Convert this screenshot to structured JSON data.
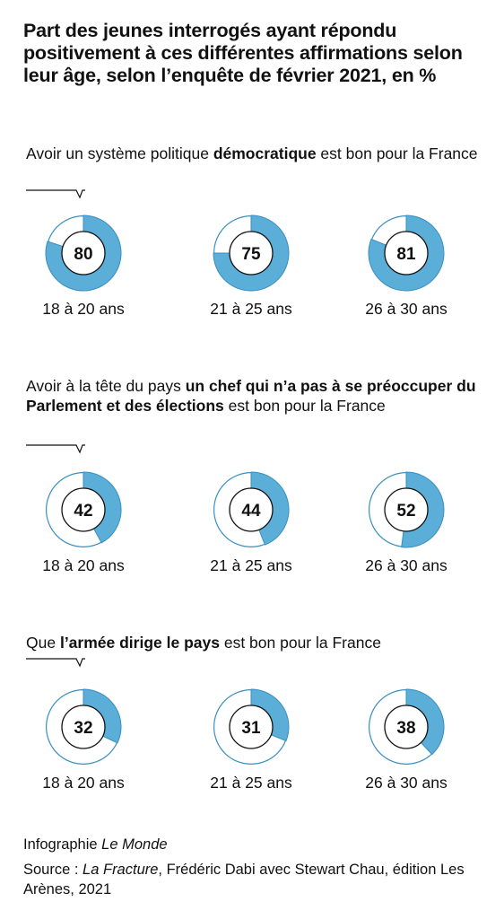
{
  "title": "Part des jeunes interrogés ayant répondu positivement à ces différentes affirmations selon leur âge, selon l’enquête de février 2021, en %",
  "colors": {
    "fill": "#5aaed7",
    "ring": "#3a8fc0",
    "text": "#111111"
  },
  "chart_data": [
    {
      "type": "pie",
      "question": [
        "Avoir un système politique ",
        "démocratique",
        " est bon pour la France"
      ],
      "categories": [
        "18 à 20 ans",
        "21 à 25 ans",
        "26 à 30 ans"
      ],
      "values": [
        80,
        75,
        81
      ],
      "unit": "%"
    },
    {
      "type": "pie",
      "question": [
        "Avoir à la tête du pays ",
        "un chef qui n’a pas à se préoccuper du Parlement et des élections",
        " est bon pour la France"
      ],
      "categories": [
        "18 à 20 ans",
        "21 à 25 ans",
        "26 à 30 ans"
      ],
      "values": [
        42,
        44,
        52
      ],
      "unit": "%"
    },
    {
      "type": "pie",
      "question": [
        "Que ",
        "l’armée dirige le pays",
        " est bon pour la France"
      ],
      "categories": [
        "18 à 20 ans",
        "21 à 25 ans",
        "26 à 30 ans"
      ],
      "values": [
        32,
        31,
        38
      ],
      "unit": "%"
    }
  ],
  "footer": {
    "credit_prefix": "Infographie ",
    "credit_name": "Le Monde",
    "source_prefix": "Source : ",
    "source_title": "La Fracture",
    "source_rest": ", Frédéric Dabi avec Stewart Chau, édition Les Arènes, 2021"
  }
}
